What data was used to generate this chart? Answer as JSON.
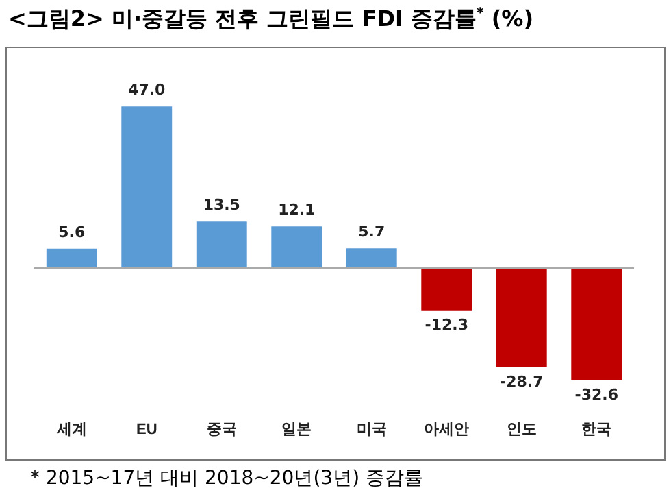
{
  "chart_data": {
    "type": "bar",
    "title": "<그림2> 미·중갈등 전후 그린필드 FDI 증감률$^{*}$ (%)",
    "categories": [
      "세계",
      "EU",
      "중국",
      "일본",
      "미국",
      "아세안",
      "인도",
      "한국"
    ],
    "values": [
      5.6,
      47.0,
      13.5,
      12.1,
      5.7,
      -12.3,
      -28.7,
      -32.6
    ],
    "colors": [
      "#5b9bd5",
      "#5b9bd5",
      "#5b9bd5",
      "#5b9bd5",
      "#5b9bd5",
      "#c00000",
      "#c00000",
      "#c00000"
    ],
    "value_labels": [
      "5.6",
      "47.0",
      "13.5",
      "12.1",
      "5.7",
      "-12.3",
      "-28.7",
      "-32.6"
    ],
    "grid": false,
    "legend": false,
    "annotations": [
      "* 2015~17년 대비 2018~20년(3년) 증감률"
    ]
  }
}
